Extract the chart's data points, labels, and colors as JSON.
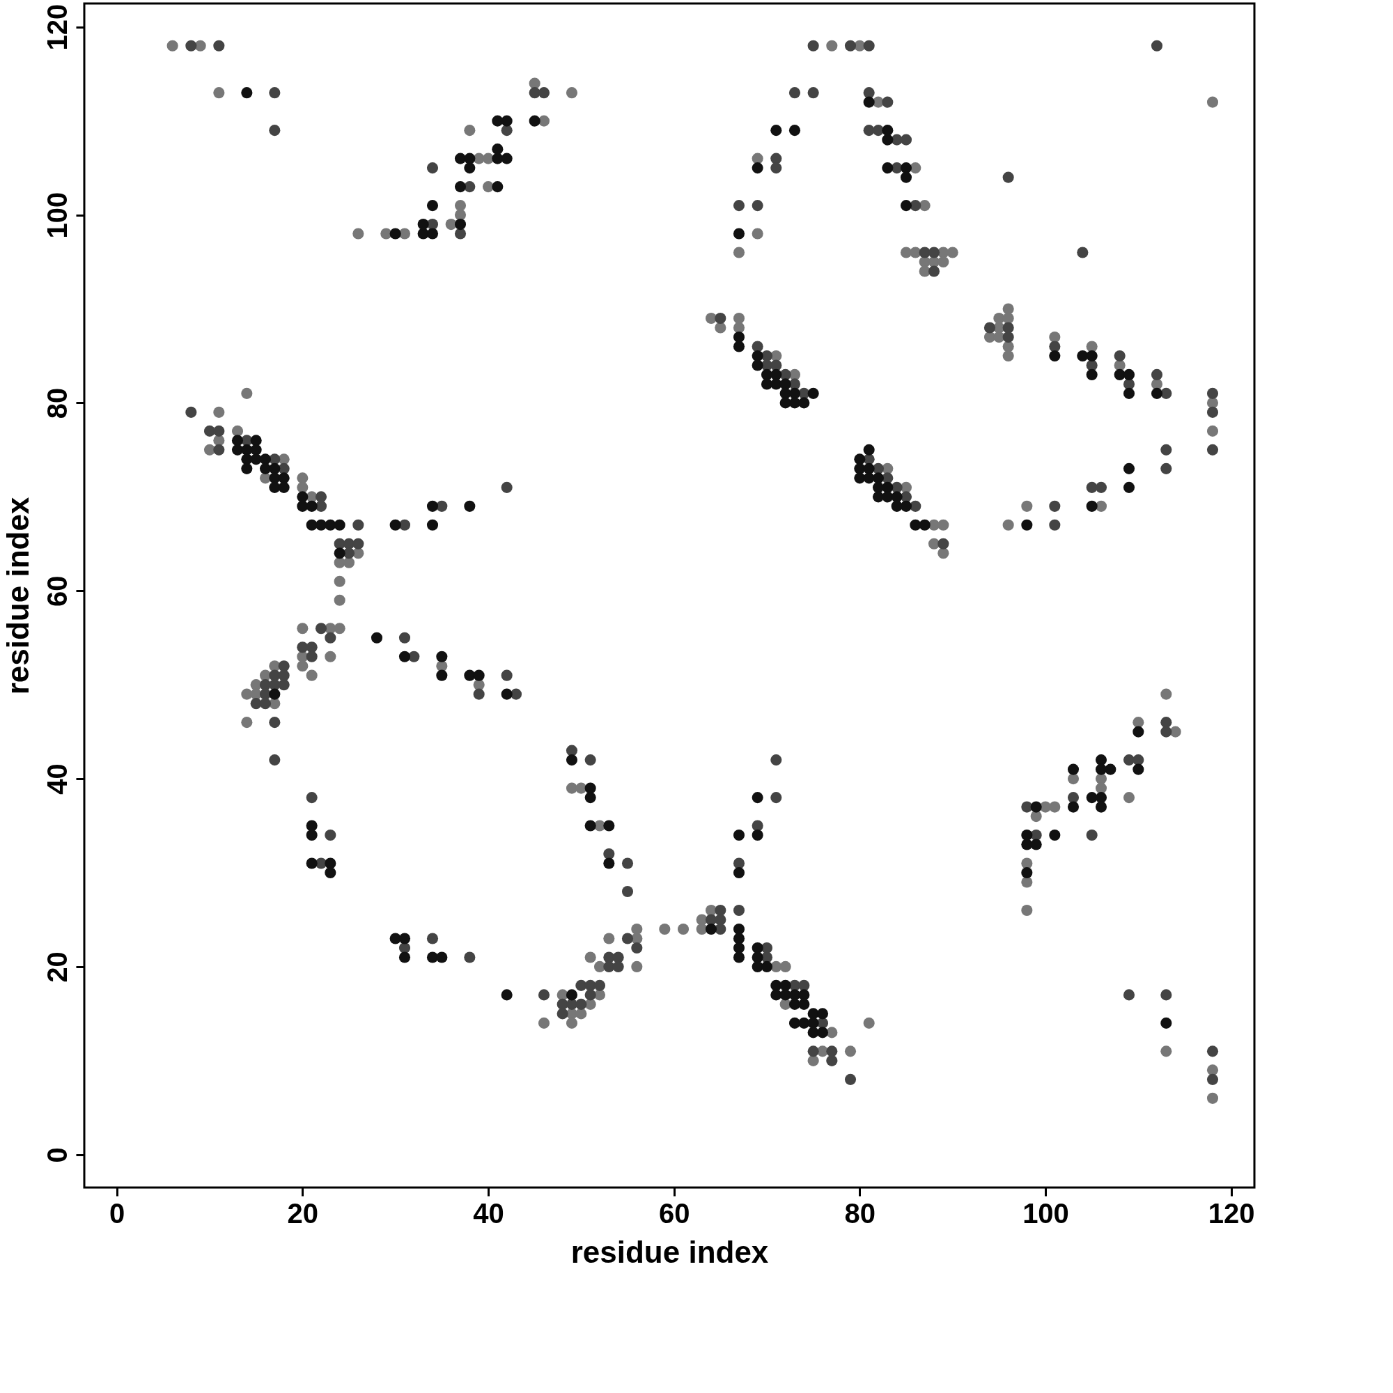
{
  "chart_data": {
    "type": "scatter",
    "xlabel": "residue index",
    "ylabel": "residue index",
    "xlim": [
      -3.5,
      122.5
    ],
    "ylim": [
      -3.5,
      122.5
    ],
    "xticks": [
      0,
      20,
      40,
      60,
      80,
      100,
      120
    ],
    "yticks": [
      0,
      20,
      40,
      60,
      80,
      100,
      120
    ],
    "grid": false,
    "marker": "circle",
    "series": [
      {
        "color": "#777777",
        "x": [
          6,
          9,
          11,
          26,
          29,
          31,
          36,
          37,
          37,
          40,
          39,
          40,
          38,
          46,
          49,
          45,
          14,
          77,
          80,
          82,
          118,
          69,
          86,
          87,
          69,
          67,
          85,
          86,
          89,
          90,
          87,
          88,
          89,
          87,
          64,
          67,
          65,
          67,
          71,
          73,
          95,
          96,
          96,
          94,
          95,
          95,
          96,
          96,
          101,
          105,
          108,
          112,
          118,
          118,
          11,
          13,
          10,
          11,
          18,
          16,
          20,
          20,
          21,
          26,
          24,
          25,
          24,
          24,
          20,
          23,
          24,
          35,
          39,
          20,
          20,
          21,
          23,
          17,
          16,
          15,
          14,
          15,
          17,
          14,
          83,
          85,
          88,
          89,
          88,
          89,
          96,
          98,
          106,
          46,
          48,
          51,
          49,
          50,
          49,
          52,
          51,
          52,
          56,
          53,
          56,
          56,
          59,
          49,
          50,
          52,
          61,
          63,
          64,
          63,
          71,
          72,
          72,
          77,
          76,
          79,
          75,
          81,
          100,
          101,
          99,
          98,
          98,
          98,
          103,
          106,
          106,
          109,
          110,
          114,
          113,
          113,
          118,
          118
        ],
        "values": [
          118,
          118,
          113,
          98,
          98,
          98,
          99,
          100,
          101,
          103,
          106,
          106,
          109,
          110,
          113,
          114,
          81,
          118,
          118,
          112,
          112,
          106,
          105,
          101,
          98,
          96,
          96,
          96,
          96,
          96,
          95,
          95,
          95,
          94,
          89,
          89,
          88,
          88,
          85,
          83,
          89,
          90,
          89,
          87,
          88,
          87,
          86,
          85,
          87,
          86,
          84,
          82,
          80,
          77,
          79,
          77,
          75,
          76,
          74,
          72,
          72,
          71,
          70,
          64,
          63,
          63,
          61,
          59,
          56,
          56,
          56,
          52,
          50,
          53,
          52,
          51,
          53,
          52,
          51,
          50,
          49,
          49,
          48,
          46,
          73,
          71,
          67,
          67,
          65,
          64,
          67,
          69,
          69,
          14,
          17,
          16,
          15,
          15,
          14,
          17,
          21,
          20,
          20,
          23,
          23,
          24,
          24,
          39,
          39,
          35,
          24,
          25,
          26,
          24,
          20,
          20,
          16,
          13,
          11,
          11,
          10,
          14,
          37,
          37,
          36,
          31,
          29,
          26,
          40,
          40,
          39,
          38,
          46,
          45,
          49,
          11,
          9,
          6
        ]
      },
      {
        "color": "#444444",
        "x": [
          8,
          11,
          17,
          17,
          37,
          34,
          38,
          34,
          42,
          45,
          46,
          75,
          79,
          81,
          112,
          73,
          75,
          81,
          83,
          81,
          82,
          84,
          85,
          71,
          71,
          84,
          96,
          67,
          69,
          86,
          87,
          88,
          88,
          104,
          65,
          69,
          70,
          70,
          71,
          72,
          73,
          74,
          94,
          96,
          96,
          101,
          105,
          108,
          109,
          112,
          113,
          118,
          118,
          118,
          8,
          10,
          11,
          11,
          14,
          17,
          18,
          22,
          22,
          26,
          31,
          35,
          42,
          24,
          25,
          26,
          25,
          22,
          23,
          31,
          32,
          39,
          42,
          43,
          20,
          21,
          21,
          18,
          17,
          18,
          16,
          17,
          18,
          16,
          15,
          16,
          17,
          17,
          49,
          51,
          81,
          82,
          83,
          84,
          85,
          86,
          89,
          101,
          101,
          105,
          106,
          113,
          113,
          21,
          23,
          22,
          31,
          34,
          38,
          46,
          50,
          51,
          52,
          48,
          49,
          50,
          48,
          51,
          53,
          54,
          53,
          54,
          55,
          56,
          53,
          55,
          55,
          71,
          71,
          69,
          67,
          67,
          65,
          64,
          65,
          65,
          70,
          70,
          73,
          74,
          76,
          75,
          77,
          77,
          79,
          98,
          99,
          103,
          105,
          109,
          110,
          113,
          113,
          109,
          113,
          118,
          118
        ],
        "values": [
          118,
          118,
          113,
          109,
          98,
          99,
          103,
          105,
          109,
          113,
          113,
          118,
          118,
          118,
          118,
          113,
          113,
          113,
          112,
          109,
          109,
          108,
          108,
          106,
          105,
          105,
          104,
          101,
          101,
          101,
          96,
          96,
          94,
          96,
          89,
          86,
          85,
          84,
          84,
          83,
          82,
          81,
          88,
          88,
          87,
          86,
          84,
          85,
          82,
          83,
          81,
          81,
          79,
          75,
          79,
          77,
          77,
          75,
          76,
          74,
          73,
          70,
          69,
          67,
          67,
          69,
          71,
          65,
          65,
          65,
          64,
          56,
          55,
          55,
          53,
          49,
          51,
          49,
          54,
          54,
          53,
          52,
          51,
          51,
          50,
          50,
          50,
          49,
          48,
          48,
          46,
          42,
          43,
          42,
          74,
          73,
          72,
          71,
          70,
          69,
          65,
          69,
          67,
          71,
          71,
          75,
          73,
          38,
          34,
          31,
          22,
          23,
          21,
          17,
          18,
          18,
          18,
          16,
          16,
          16,
          15,
          17,
          21,
          21,
          20,
          20,
          23,
          22,
          32,
          31,
          28,
          42,
          38,
          35,
          31,
          26,
          26,
          25,
          25,
          24,
          22,
          21,
          18,
          18,
          14,
          11,
          11,
          10,
          8,
          37,
          34,
          38,
          34,
          42,
          42,
          46,
          45,
          17,
          17,
          11,
          8
        ]
      },
      {
        "color": "#111111",
        "x": [
          14,
          30,
          33,
          34,
          33,
          37,
          34,
          37,
          41,
          38,
          37,
          38,
          41,
          42,
          41,
          41,
          42,
          45,
          71,
          73,
          83,
          81,
          83,
          69,
          83,
          85,
          85,
          85,
          67,
          67,
          67,
          69,
          69,
          70,
          71,
          70,
          71,
          72,
          72,
          73,
          75,
          72,
          73,
          74,
          101,
          104,
          105,
          105,
          108,
          109,
          109,
          112,
          13,
          15,
          13,
          14,
          15,
          14,
          15,
          16,
          14,
          16,
          17,
          17,
          18,
          17,
          18,
          20,
          20,
          21,
          21,
          22,
          23,
          24,
          30,
          34,
          34,
          38,
          24,
          28,
          31,
          35,
          35,
          38,
          39,
          42,
          17,
          81,
          80,
          80,
          81,
          80,
          81,
          82,
          82,
          83,
          82,
          83,
          84,
          84,
          85,
          86,
          87,
          98,
          105,
          109,
          109,
          49,
          21,
          21,
          21,
          23,
          23,
          30,
          31,
          31,
          34,
          35,
          42,
          49,
          51,
          51,
          51,
          53,
          53,
          69,
          67,
          69,
          67,
          64,
          67,
          67,
          67,
          67,
          69,
          69,
          69,
          70,
          71,
          72,
          71,
          72,
          73,
          74,
          73,
          74,
          73,
          74,
          75,
          76,
          75,
          75,
          76,
          99,
          98,
          101,
          98,
          99,
          98,
          103,
          105,
          106,
          106,
          103,
          106,
          106,
          107,
          110,
          110,
          113
        ],
        "values": [
          113,
          98,
          98,
          98,
          99,
          99,
          101,
          103,
          103,
          105,
          106,
          106,
          106,
          106,
          107,
          110,
          110,
          110,
          109,
          109,
          109,
          112,
          108,
          105,
          105,
          105,
          104,
          101,
          98,
          87,
          86,
          85,
          84,
          83,
          83,
          82,
          82,
          82,
          81,
          81,
          81,
          80,
          80,
          80,
          85,
          85,
          85,
          83,
          83,
          83,
          81,
          81,
          76,
          76,
          75,
          75,
          75,
          74,
          74,
          74,
          73,
          73,
          73,
          72,
          72,
          71,
          71,
          70,
          69,
          69,
          67,
          67,
          67,
          67,
          67,
          67,
          69,
          69,
          64,
          55,
          53,
          53,
          51,
          51,
          51,
          49,
          49,
          75,
          74,
          73,
          73,
          72,
          72,
          72,
          71,
          71,
          70,
          70,
          70,
          69,
          69,
          67,
          67,
          67,
          69,
          73,
          71,
          42,
          35,
          34,
          31,
          31,
          30,
          23,
          23,
          21,
          21,
          21,
          17,
          17,
          39,
          38,
          35,
          35,
          31,
          38,
          34,
          34,
          30,
          24,
          24,
          23,
          22,
          21,
          22,
          21,
          20,
          20,
          18,
          18,
          17,
          17,
          17,
          17,
          16,
          16,
          14,
          14,
          15,
          15,
          14,
          13,
          13,
          37,
          34,
          34,
          33,
          33,
          30,
          37,
          38,
          38,
          37,
          41,
          42,
          41,
          41,
          41,
          45,
          14
        ]
      }
    ]
  }
}
